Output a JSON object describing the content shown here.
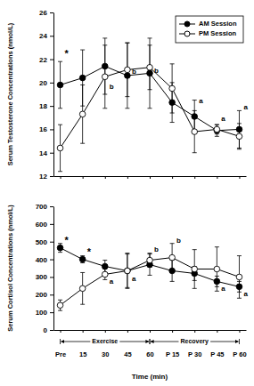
{
  "chart_data": [
    {
      "type": "line",
      "y_label": "Serum Testosterone Concentrations (nmol/L)",
      "categories": [
        "Pre",
        "15",
        "30",
        "45",
        "60",
        "P 15",
        "P 30",
        "P 45",
        "P 60"
      ],
      "ylim": [
        12,
        26
      ],
      "yticks": [
        12,
        14,
        16,
        18,
        20,
        22,
        24,
        26
      ],
      "grid": false,
      "legend": "upper right",
      "tick_labels": "y",
      "series": [
        {
          "name": "AM Session",
          "color": "#000000",
          "marker": "circle",
          "line_style": "solid",
          "values": [
            19.8,
            20.4,
            21.4,
            20.6,
            20.8,
            18.3,
            17.1,
            15.9,
            16.0
          ],
          "errors": [
            2.0,
            2.4,
            2.4,
            2.8,
            3.0,
            1.7,
            1.4,
            0.5,
            1.6
          ]
        },
        {
          "name": "PM Session",
          "color": "#000000",
          "marker": "open_circle",
          "line_style": "solid",
          "values": [
            14.4,
            17.3,
            20.5,
            21.1,
            21.3,
            19.5,
            15.8,
            16.0,
            15.4
          ],
          "errors": [
            2.0,
            2.5,
            2.7,
            2.3,
            1.9,
            2.1,
            1.8,
            0.4,
            1.1
          ]
        }
      ],
      "annotations": [
        {
          "x": "Pre",
          "y": 22.4,
          "text": "*"
        },
        {
          "x": "30",
          "y": 19.6,
          "text": "b"
        },
        {
          "x": "45",
          "y": 20.9,
          "text": "b"
        },
        {
          "x": "60",
          "y": 21.0,
          "text": "b"
        },
        {
          "x": "P 30",
          "y": 18.4,
          "text": "a"
        },
        {
          "x": "P 45",
          "y": 16.9,
          "text": "a"
        },
        {
          "x": "P 60",
          "y": 17.9,
          "text": "a"
        }
      ]
    },
    {
      "type": "line",
      "y_label": "Serum Cortisol Concentrations (nmol/L)",
      "x_label": "Time (min)",
      "categories": [
        "Pre",
        "15",
        "30",
        "45",
        "60",
        "P 15",
        "P 30",
        "P 45",
        "P 60"
      ],
      "ylim": [
        0,
        700
      ],
      "yticks": [
        0,
        100,
        200,
        300,
        400,
        500,
        600,
        700
      ],
      "grid": false,
      "series": [
        {
          "color": "#000000",
          "marker": "circle",
          "line_style": "solid",
          "values": [
            465,
            400,
            360,
            335,
            370,
            335,
            320,
            275,
            245
          ],
          "errors": [
            25,
            20,
            35,
            100,
            60,
            60,
            40,
            30,
            30
          ]
        },
        {
          "color": "#000000",
          "marker": "open_circle",
          "line_style": "solid",
          "values": [
            140,
            235,
            315,
            335,
            395,
            410,
            345,
            345,
            300
          ],
          "errors": [
            30,
            90,
            30,
            95,
            40,
            80,
            110,
            125,
            120
          ]
        }
      ],
      "annotations": [
        {
          "x": "Pre",
          "y": 505,
          "text": "*"
        },
        {
          "x": "15",
          "y": 440,
          "text": "*"
        },
        {
          "x": "30",
          "y": 270,
          "text": "a"
        },
        {
          "x": "45",
          "y": 290,
          "text": "a"
        },
        {
          "x": "60",
          "y": 455,
          "text": "b"
        },
        {
          "x": "P 15",
          "y": 505,
          "text": "b"
        },
        {
          "x": "P 45",
          "y": 230,
          "text": "a"
        },
        {
          "x": "P 60",
          "y": 200,
          "text": "a"
        }
      ],
      "phases": [
        {
          "label": "Exercise",
          "from": "Pre",
          "to": "60"
        },
        {
          "label": "Recovery",
          "from": "60",
          "to": "P 60"
        }
      ]
    }
  ]
}
